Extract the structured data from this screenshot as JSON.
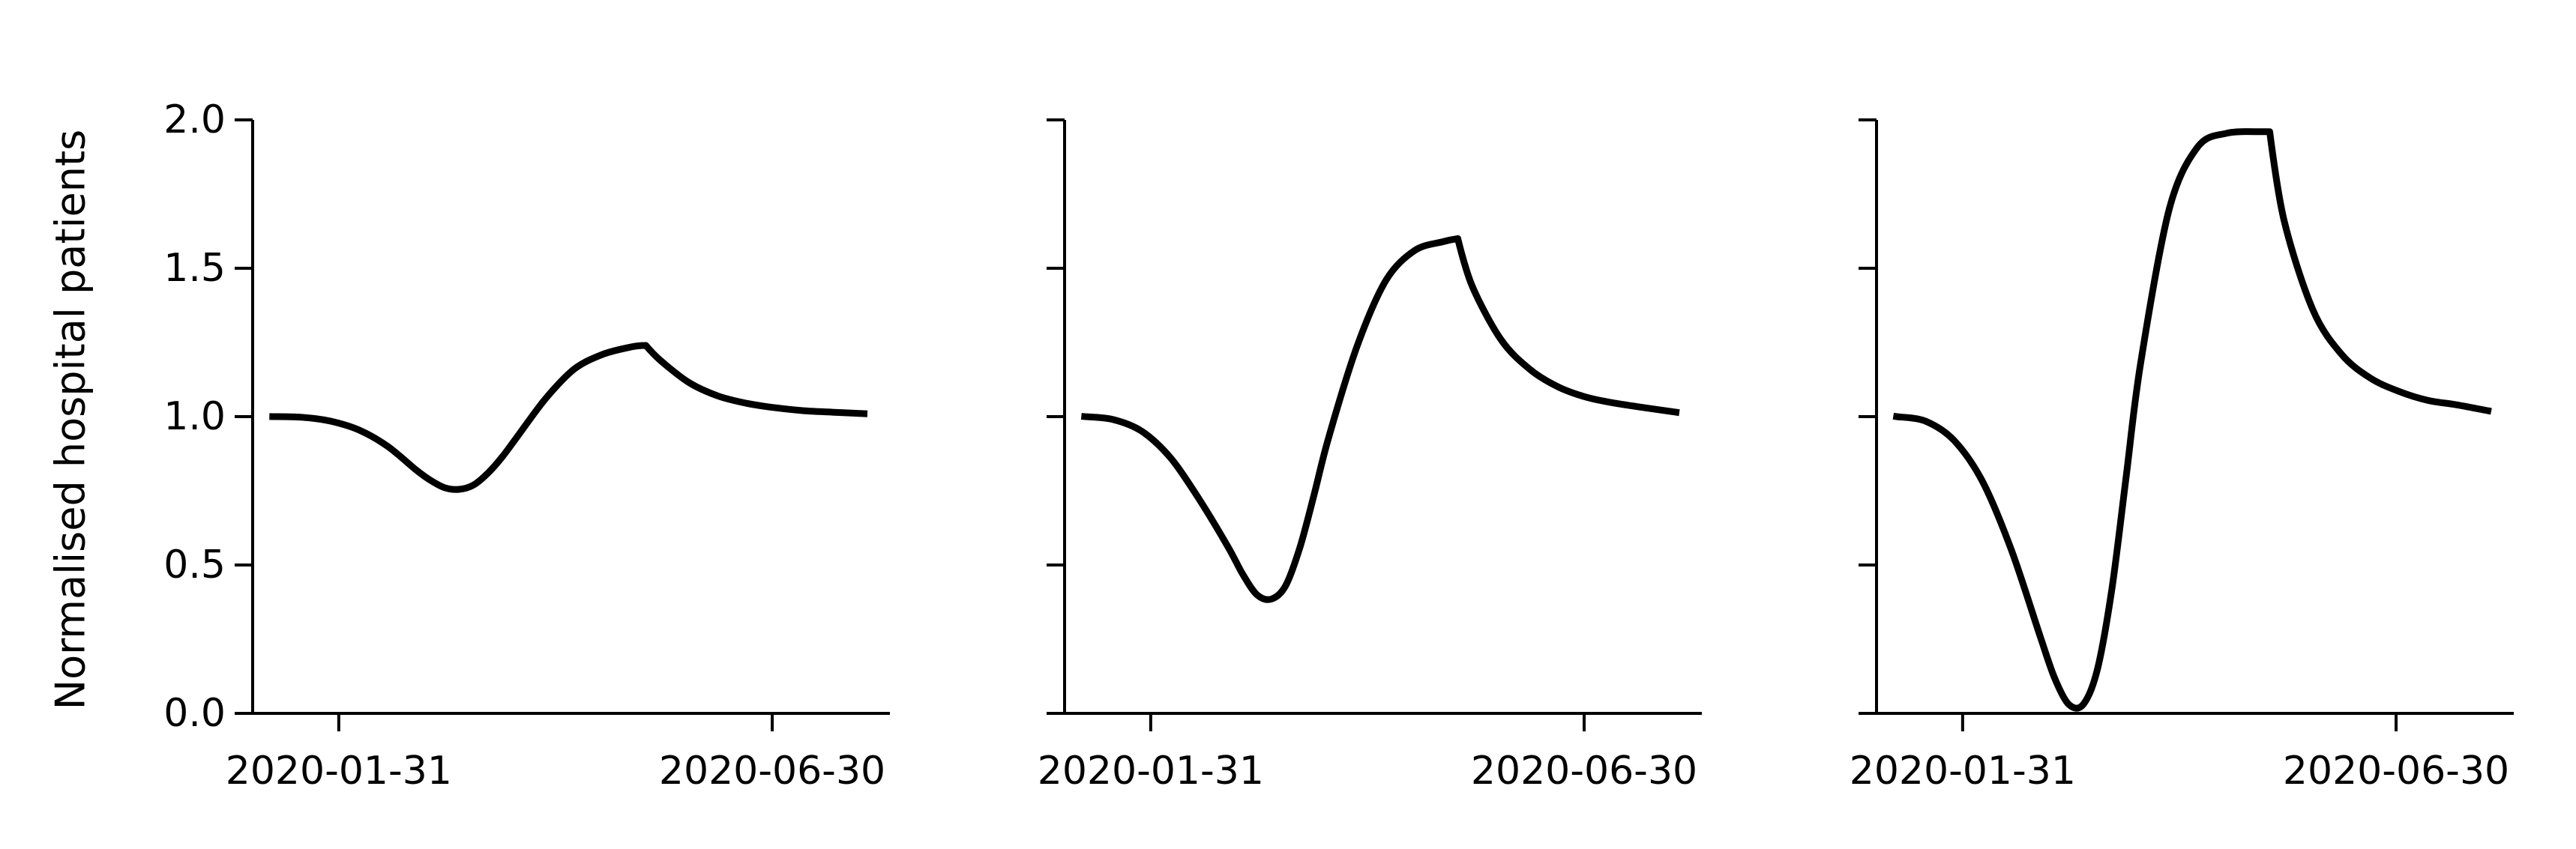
{
  "figure": {
    "ylabel": "Normalised hospital patients"
  },
  "style": {
    "line_color": "#000000",
    "axis_color": "#000000",
    "background": "#ffffff"
  },
  "chart_data": [
    {
      "type": "line",
      "title": "",
      "xlabel": "",
      "ylabel": "Normalised hospital patients",
      "x_type": "date",
      "xlim": [
        "2020-01-01",
        "2020-08-10"
      ],
      "ylim": [
        0,
        2
      ],
      "xticks": [
        "2020-01-31",
        "2020-06-30"
      ],
      "yticks": [
        "0.0",
        "0.5",
        "1.0",
        "1.5",
        "2.0"
      ],
      "grid": false,
      "series": [
        {
          "x": [
            "2020-01-08",
            "2020-01-18",
            "2020-01-28",
            "2020-02-07",
            "2020-02-17",
            "2020-02-27",
            "2020-03-03",
            "2020-03-08",
            "2020-03-13",
            "2020-03-18",
            "2020-03-23",
            "2020-03-28",
            "2020-04-02",
            "2020-04-12",
            "2020-04-22",
            "2020-05-02",
            "2020-05-12",
            "2020-05-17",
            "2020-05-22",
            "2020-06-01",
            "2020-06-11",
            "2020-06-21",
            "2020-07-01",
            "2020-07-11",
            "2020-07-21",
            "2020-08-01"
          ],
          "y": [
            1.0,
            0.998,
            0.985,
            0.955,
            0.9,
            0.82,
            0.785,
            0.76,
            0.755,
            0.77,
            0.81,
            0.865,
            0.93,
            1.06,
            1.16,
            1.21,
            1.235,
            1.24,
            1.19,
            1.115,
            1.07,
            1.045,
            1.03,
            1.02,
            1.015,
            1.01
          ]
        }
      ]
    },
    {
      "type": "line",
      "title": "",
      "xlabel": "",
      "ylabel": "",
      "x_type": "date",
      "xlim": [
        "2020-01-01",
        "2020-08-10"
      ],
      "ylim": [
        0,
        2
      ],
      "xticks": [
        "2020-01-31",
        "2020-06-30"
      ],
      "yticks": [
        "0.0",
        "0.5",
        "1.0",
        "1.5",
        "2.0"
      ],
      "grid": false,
      "series": [
        {
          "x": [
            "2020-01-08",
            "2020-01-18",
            "2020-01-28",
            "2020-02-07",
            "2020-02-17",
            "2020-02-27",
            "2020-03-03",
            "2020-03-08",
            "2020-03-13",
            "2020-03-18",
            "2020-03-23",
            "2020-03-28",
            "2020-04-02",
            "2020-04-12",
            "2020-04-22",
            "2020-05-02",
            "2020-05-12",
            "2020-05-17",
            "2020-05-22",
            "2020-06-01",
            "2020-06-11",
            "2020-06-21",
            "2020-07-01",
            "2020-07-11",
            "2020-07-21",
            "2020-08-01"
          ],
          "y": [
            1.0,
            0.99,
            0.95,
            0.86,
            0.72,
            0.56,
            0.47,
            0.4,
            0.385,
            0.43,
            0.56,
            0.74,
            0.93,
            1.24,
            1.46,
            1.56,
            1.59,
            1.6,
            1.44,
            1.26,
            1.16,
            1.1,
            1.065,
            1.045,
            1.03,
            1.015
          ]
        }
      ]
    },
    {
      "type": "line",
      "title": "",
      "xlabel": "",
      "ylabel": "",
      "x_type": "date",
      "xlim": [
        "2020-01-01",
        "2020-08-10"
      ],
      "ylim": [
        0,
        2
      ],
      "xticks": [
        "2020-01-31",
        "2020-06-30"
      ],
      "yticks": [
        "0.0",
        "0.5",
        "1.0",
        "1.5",
        "2.0"
      ],
      "grid": false,
      "series": [
        {
          "x": [
            "2020-01-08",
            "2020-01-18",
            "2020-01-28",
            "2020-02-07",
            "2020-02-17",
            "2020-02-27",
            "2020-03-03",
            "2020-03-08",
            "2020-03-13",
            "2020-03-18",
            "2020-03-23",
            "2020-03-28",
            "2020-04-02",
            "2020-04-12",
            "2020-04-22",
            "2020-05-02",
            "2020-05-12",
            "2020-05-17",
            "2020-05-22",
            "2020-06-01",
            "2020-06-11",
            "2020-06-21",
            "2020-07-01",
            "2020-07-11",
            "2020-07-21",
            "2020-08-01"
          ],
          "y": [
            1.0,
            0.985,
            0.92,
            0.78,
            0.55,
            0.26,
            0.12,
            0.03,
            0.03,
            0.15,
            0.42,
            0.8,
            1.18,
            1.7,
            1.91,
            1.955,
            1.96,
            1.96,
            1.66,
            1.36,
            1.21,
            1.13,
            1.085,
            1.055,
            1.04,
            1.02
          ]
        }
      ]
    }
  ]
}
